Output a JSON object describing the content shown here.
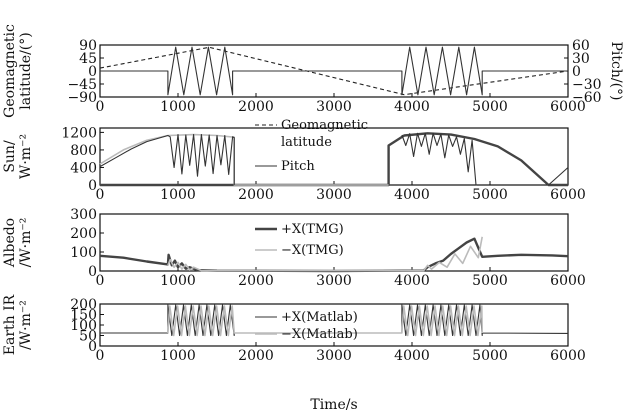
{
  "chart_data": [
    {
      "type": "line",
      "name": "panel-geomagnetic-pitch",
      "xlim": [
        0,
        6000
      ],
      "ylim": [
        -90,
        90
      ],
      "yticks": [
        "90",
        "45",
        "0",
        "−45",
        "−90"
      ],
      "ytick_values": [
        90,
        45,
        0,
        -45,
        -90
      ],
      "ylabel_lines": [
        "Geomagnetic",
        "latitude/(°)"
      ],
      "y2label": "Pitch/(°)",
      "y2ticks": [
        "60",
        "30",
        "0",
        "−30",
        "−60"
      ],
      "y2tick_values": [
        60,
        30,
        0,
        -30,
        -60
      ],
      "y2lim": [
        -60,
        60
      ],
      "series": [
        {
          "key": "geomag",
          "style": "dashed",
          "x": [
            0,
            1400,
            3900,
            6000
          ],
          "y": [
            10,
            82,
            -82,
            0
          ]
        },
        {
          "key": "pitch",
          "style": "solid",
          "axis": "right",
          "x": [
            0,
            870,
            870,
            970,
            1075,
            1180,
            1285,
            1390,
            1495,
            1600,
            1700,
            1700,
            3870,
            3870,
            3970,
            4075,
            4180,
            4285,
            4390,
            4495,
            4600,
            4700,
            4800,
            4900,
            4900,
            6000
          ],
          "y": [
            0,
            0,
            -55,
            55,
            -55,
            55,
            -55,
            55,
            -55,
            55,
            -55,
            0,
            0,
            -55,
            55,
            -55,
            55,
            -55,
            55,
            -55,
            55,
            -55,
            55,
            -55,
            0,
            0
          ]
        }
      ]
    },
    {
      "type": "line",
      "name": "panel-sun",
      "xlim": [
        0,
        6000
      ],
      "ylim": [
        0,
        1300
      ],
      "yticks": [
        "1200",
        "800",
        "400",
        "0"
      ],
      "ytick_values": [
        1200,
        800,
        400,
        0
      ],
      "ylabel_lines": [
        "Sun/",
        "W·m⁻²"
      ],
      "series": [
        {
          "key": "sun-dark",
          "style": "thick",
          "x": [
            0,
            3700,
            3700,
            3900,
            4200,
            4500,
            4800,
            5100,
            5400,
            5750,
            5750,
            6000
          ],
          "y": [
            0,
            0,
            900,
            1130,
            1180,
            1150,
            1050,
            880,
            560,
            0,
            0,
            0
          ]
        },
        {
          "key": "sun-light",
          "style": "light",
          "x": [
            0,
            300,
            600,
            870,
            1200,
            1500,
            1720,
            1720,
            3700
          ],
          "y": [
            480,
            800,
            1020,
            1130,
            1150,
            1130,
            1090,
            0,
            0
          ]
        },
        {
          "key": "sun-osc1",
          "style": "solid",
          "x": [
            0,
            200,
            400,
            600,
            870,
            900,
            950,
            1000,
            1050,
            1100,
            1150,
            1200,
            1250,
            1300,
            1350,
            1400,
            1450,
            1500,
            1550,
            1600,
            1650,
            1700,
            1720,
            1720
          ],
          "y": [
            420,
            620,
            820,
            990,
            1130,
            1100,
            400,
            1150,
            250,
            1140,
            450,
            1150,
            200,
            1150,
            430,
            1140,
            260,
            1130,
            460,
            1130,
            240,
            1100,
            1080,
            0
          ]
        },
        {
          "key": "sun-osc2",
          "style": "solid",
          "x": [
            3870,
            3920,
            3970,
            4020,
            4070,
            4120,
            4170,
            4220,
            4270,
            4320,
            4370,
            4420,
            4470,
            4520,
            4570,
            4620,
            4670,
            4720,
            4770,
            4820,
            4830
          ],
          "y": [
            1140,
            900,
            1170,
            650,
            1180,
            880,
            1180,
            700,
            1180,
            900,
            1160,
            620,
            1140,
            880,
            1100,
            700,
            1060,
            300,
            1020,
            0,
            0
          ]
        },
        {
          "key": "sun-tail",
          "style": "solid",
          "x": [
            5750,
            6000
          ],
          "y": [
            0,
            400
          ]
        }
      ],
      "legend": [
        {
          "label_lines": [
            "Geomagnetic",
            "latitude"
          ],
          "style": "dashed"
        },
        {
          "label_lines": [
            "Pitch"
          ],
          "style": "solid"
        }
      ]
    },
    {
      "type": "line",
      "name": "panel-albedo",
      "xlim": [
        0,
        6000
      ],
      "ylim": [
        0,
        300
      ],
      "yticks": [
        "300",
        "200",
        "100",
        "0"
      ],
      "ytick_values": [
        300,
        200,
        100,
        0
      ],
      "ylabel_lines": [
        "Albedo",
        "/W·m⁻²"
      ],
      "series": [
        {
          "key": "alb-plus",
          "style": "thick",
          "x": [
            0,
            300,
            600,
            870,
            880,
            920,
            960,
            1000,
            1050,
            1100,
            1150,
            1250,
            1500,
            3000,
            4150,
            4200,
            4300,
            4400,
            4500,
            4600,
            4700,
            4800,
            4900,
            5100,
            5400,
            5800,
            6000
          ],
          "y": [
            80,
            70,
            50,
            35,
            85,
            30,
            55,
            20,
            40,
            12,
            20,
            5,
            2,
            0,
            3,
            20,
            40,
            55,
            90,
            120,
            150,
            170,
            75,
            80,
            85,
            82,
            78
          ]
        },
        {
          "key": "alb-minus",
          "style": "light",
          "x": [
            870,
            900,
            950,
            1000,
            1050,
            1100,
            1150,
            1200,
            1300,
            4150,
            4200,
            4250,
            4350,
            4450,
            4550,
            4650,
            4750,
            4850,
            4900
          ],
          "y": [
            30,
            60,
            20,
            45,
            10,
            35,
            5,
            20,
            2,
            2,
            30,
            10,
            45,
            20,
            90,
            40,
            130,
            70,
            180
          ]
        }
      ],
      "legend": [
        {
          "label": "+X(TMG)",
          "style": "thick"
        },
        {
          "label": "−X(TMG)",
          "style": "light"
        }
      ]
    },
    {
      "type": "line",
      "name": "panel-earth-ir",
      "xlim": [
        0,
        6000
      ],
      "ylim": [
        0,
        200
      ],
      "yticks": [
        "200",
        "150",
        "100",
        "50",
        "0"
      ],
      "ytick_values": [
        200,
        150,
        100,
        50,
        0
      ],
      "xticks": [
        "0",
        "1000",
        "2000",
        "3000",
        "4000",
        "5000",
        "6000"
      ],
      "xtick_values": [
        0,
        1000,
        2000,
        3000,
        4000,
        5000,
        6000
      ],
      "xlabel": "Time/s",
      "ylabel_lines": [
        "Earth IR",
        "/W·m⁻²"
      ],
      "series": [
        {
          "key": "ir-plus",
          "style": "solid",
          "x": [
            0,
            870,
            870,
            920,
            970,
            1020,
            1070,
            1120,
            1170,
            1220,
            1270,
            1320,
            1370,
            1420,
            1470,
            1520,
            1570,
            1620,
            1670,
            1720,
            1720,
            3870,
            3870,
            3920,
            3970,
            4020,
            4070,
            4120,
            4170,
            4220,
            4270,
            4320,
            4370,
            4420,
            4470,
            4520,
            4570,
            4620,
            4670,
            4720,
            4770,
            4820,
            4870,
            4900,
            4900,
            6000
          ],
          "y": [
            62,
            62,
            195,
            50,
            195,
            50,
            195,
            50,
            195,
            50,
            195,
            50,
            195,
            50,
            195,
            50,
            195,
            50,
            195,
            50,
            62,
            62,
            195,
            50,
            195,
            50,
            195,
            50,
            195,
            50,
            195,
            50,
            195,
            50,
            195,
            50,
            195,
            50,
            195,
            50,
            195,
            50,
            195,
            50,
            62,
            60
          ]
        },
        {
          "key": "ir-minus",
          "style": "light",
          "x": [
            870,
            895,
            945,
            995,
            1045,
            1095,
            1145,
            1195,
            1245,
            1295,
            1345,
            1395,
            1445,
            1495,
            1545,
            1595,
            1645,
            1695,
            1720,
            3870,
            3895,
            3945,
            3995,
            4045,
            4095,
            4145,
            4195,
            4245,
            4295,
            4345,
            4395,
            4445,
            4495,
            4545,
            4595,
            4645,
            4695,
            4745,
            4795,
            4845,
            4895,
            4900
          ],
          "y": [
            62,
            190,
            50,
            190,
            50,
            190,
            50,
            190,
            50,
            190,
            50,
            190,
            50,
            190,
            50,
            190,
            50,
            190,
            62,
            62,
            190,
            50,
            190,
            50,
            190,
            50,
            190,
            50,
            190,
            50,
            190,
            50,
            190,
            50,
            190,
            50,
            190,
            50,
            190,
            50,
            190,
            62
          ]
        }
      ],
      "legend": [
        {
          "label": "+X(Matlab)",
          "style": "solid"
        },
        {
          "label": "−X(Matlab)",
          "style": "light"
        }
      ]
    }
  ],
  "colors": {
    "axis": "#111111",
    "solid": "#333333",
    "thick": "#444444",
    "light": "#bbbbbb",
    "dashed": "#222222"
  }
}
